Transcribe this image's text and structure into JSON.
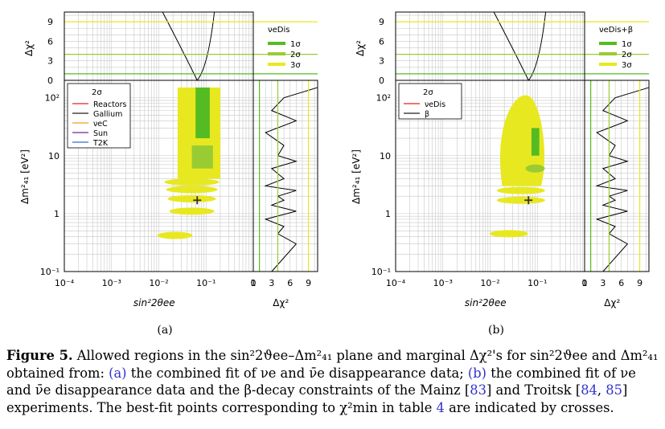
{
  "panels": [
    {
      "id": "a",
      "sublabel": "(a)",
      "delta_chi2_label": "Δχ²",
      "delta_chi2_ticks": [
        "0",
        "3",
        "6",
        "9"
      ],
      "dm2_axis_label": "Δm²₄₁ [eV²]",
      "dm2_ticks": [
        "10⁻¹",
        "1",
        "10",
        "10²"
      ],
      "sin2_axis_label": "sin²2θee",
      "sin2_ticks": [
        "10⁻⁴",
        "10⁻³",
        "10⁻²",
        "10⁻¹",
        "1"
      ],
      "cl_legend_title": "νeDis",
      "cl_legend": [
        "1σ",
        "2σ",
        "3σ"
      ],
      "inner_legend_title": "2σ",
      "inner_legend": [
        {
          "label": "Reactors",
          "color": "#e02020"
        },
        {
          "label": "Gallium",
          "color": "#222222"
        },
        {
          "label": "νeC",
          "color": "#e8a020"
        },
        {
          "label": "Sun",
          "color": "#7a1fa0"
        },
        {
          "label": "T2K",
          "color": "#3070c0"
        }
      ],
      "best_fit": {
        "sin2": 0.065,
        "dm2": 1.7
      }
    },
    {
      "id": "b",
      "sublabel": "(b)",
      "delta_chi2_label": "Δχ²",
      "delta_chi2_ticks": [
        "0",
        "3",
        "6",
        "9"
      ],
      "dm2_axis_label": "Δm²₄₁ [eV²]",
      "dm2_ticks": [
        "10⁻¹",
        "1",
        "10",
        "10²"
      ],
      "sin2_axis_label": "sin²2θee",
      "sin2_ticks": [
        "10⁻⁴",
        "10⁻³",
        "10⁻²",
        "10⁻¹",
        "1"
      ],
      "cl_legend_title": "νeDis+β",
      "cl_legend": [
        "1σ",
        "2σ",
        "3σ"
      ],
      "inner_legend_title": "2σ",
      "inner_legend": [
        {
          "label": "νeDis",
          "color": "#e02020"
        },
        {
          "label": "β",
          "color": "#222222"
        }
      ],
      "best_fit": {
        "sin2": 0.065,
        "dm2": 1.7
      }
    }
  ],
  "colors": {
    "sigma1": "#55bb22",
    "sigma2": "#99cc33",
    "sigma3": "#e8e820",
    "grid": "#c8c8c8"
  },
  "caption": {
    "label": "Figure 5.",
    "t1": " Allowed regions in the sin²2ϑee–Δm²₄₁ plane and marginal Δχ²'s for sin²2ϑee and Δm²₄₁ obtained from: ",
    "ref_a": "(a)",
    "t2": " the combined fit of νe and ν̄e disappearance data; ",
    "ref_b": "(b)",
    "t3": " the combined fit of νe and ν̄e disappearance data and the β-decay constraints of the Mainz [",
    "ref_83": "83",
    "t4": "] and Troitsk [",
    "ref_84": "84",
    "t5": ", ",
    "ref_85": "85",
    "t6": "] experiments. The best-fit points corresponding to χ²min in table ",
    "ref_4": "4",
    "t7": " are indicated by crosses."
  }
}
